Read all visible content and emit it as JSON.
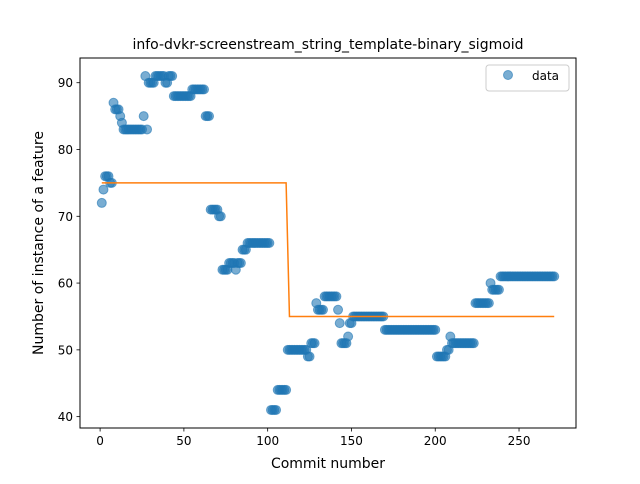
{
  "chart_data": {
    "type": "scatter",
    "title": "info-dvkr-screenstream_string_template-binary_sigmoid",
    "xlabel": "Commit number",
    "ylabel": "Number of instance of a feature",
    "xlim": [
      -12,
      284
    ],
    "ylim": [
      38.3,
      93.7
    ],
    "xticks": [
      0,
      50,
      100,
      150,
      200,
      250
    ],
    "yticks": [
      40,
      50,
      60,
      70,
      80,
      90
    ],
    "grid": false,
    "legend": {
      "placement": "top-right",
      "entries": [
        "data"
      ]
    },
    "colors": {
      "points": "#1f77b4",
      "fit": "#ff7f0e"
    },
    "series": [
      {
        "name": "data",
        "kind": "scatter",
        "points": [
          [
            1,
            72
          ],
          [
            2,
            74
          ],
          [
            3,
            76
          ],
          [
            4,
            76
          ],
          [
            5,
            76
          ],
          [
            6,
            75
          ],
          [
            7,
            75
          ],
          [
            8,
            87
          ],
          [
            9,
            86
          ],
          [
            10,
            86
          ],
          [
            11,
            86
          ],
          [
            12,
            85
          ],
          [
            13,
            84
          ],
          [
            14,
            83
          ],
          [
            15,
            83
          ],
          [
            16,
            83
          ],
          [
            17,
            83
          ],
          [
            18,
            83
          ],
          [
            19,
            83
          ],
          [
            20,
            83
          ],
          [
            21,
            83
          ],
          [
            22,
            83
          ],
          [
            23,
            83
          ],
          [
            24,
            83
          ],
          [
            25,
            83
          ],
          [
            26,
            85
          ],
          [
            27,
            91
          ],
          [
            28,
            83
          ],
          [
            29,
            90
          ],
          [
            30,
            90
          ],
          [
            31,
            90
          ],
          [
            32,
            90
          ],
          [
            33,
            91
          ],
          [
            34,
            91
          ],
          [
            35,
            91
          ],
          [
            36,
            91
          ],
          [
            37,
            91
          ],
          [
            38,
            91
          ],
          [
            39,
            90
          ],
          [
            40,
            90
          ],
          [
            41,
            91
          ],
          [
            42,
            91
          ],
          [
            43,
            91
          ],
          [
            44,
            88
          ],
          [
            45,
            88
          ],
          [
            46,
            88
          ],
          [
            47,
            88
          ],
          [
            48,
            88
          ],
          [
            49,
            88
          ],
          [
            50,
            88
          ],
          [
            51,
            88
          ],
          [
            52,
            88
          ],
          [
            53,
            88
          ],
          [
            54,
            88
          ],
          [
            55,
            89
          ],
          [
            56,
            89
          ],
          [
            57,
            89
          ],
          [
            58,
            89
          ],
          [
            59,
            89
          ],
          [
            60,
            89
          ],
          [
            61,
            89
          ],
          [
            62,
            89
          ],
          [
            63,
            85
          ],
          [
            64,
            85
          ],
          [
            65,
            85
          ],
          [
            66,
            71
          ],
          [
            67,
            71
          ],
          [
            68,
            71
          ],
          [
            69,
            71
          ],
          [
            70,
            71
          ],
          [
            71,
            70
          ],
          [
            72,
            70
          ],
          [
            73,
            62
          ],
          [
            74,
            62
          ],
          [
            75,
            62
          ],
          [
            76,
            62
          ],
          [
            77,
            63
          ],
          [
            78,
            63
          ],
          [
            79,
            63
          ],
          [
            80,
            63
          ],
          [
            81,
            62
          ],
          [
            82,
            63
          ],
          [
            83,
            63
          ],
          [
            84,
            63
          ],
          [
            85,
            65
          ],
          [
            86,
            65
          ],
          [
            87,
            65
          ],
          [
            88,
            66
          ],
          [
            89,
            66
          ],
          [
            90,
            66
          ],
          [
            91,
            66
          ],
          [
            92,
            66
          ],
          [
            93,
            66
          ],
          [
            94,
            66
          ],
          [
            95,
            66
          ],
          [
            96,
            66
          ],
          [
            97,
            66
          ],
          [
            98,
            66
          ],
          [
            99,
            66
          ],
          [
            100,
            66
          ],
          [
            101,
            66
          ],
          [
            102,
            41
          ],
          [
            103,
            41
          ],
          [
            104,
            41
          ],
          [
            105,
            41
          ],
          [
            106,
            44
          ],
          [
            107,
            44
          ],
          [
            108,
            44
          ],
          [
            109,
            44
          ],
          [
            110,
            44
          ],
          [
            111,
            44
          ],
          [
            112,
            50
          ],
          [
            113,
            50
          ],
          [
            114,
            50
          ],
          [
            115,
            50
          ],
          [
            116,
            50
          ],
          [
            117,
            50
          ],
          [
            118,
            50
          ],
          [
            119,
            50
          ],
          [
            120,
            50
          ],
          [
            121,
            50
          ],
          [
            122,
            50
          ],
          [
            123,
            50
          ],
          [
            124,
            49
          ],
          [
            125,
            49
          ],
          [
            126,
            51
          ],
          [
            127,
            51
          ],
          [
            128,
            51
          ],
          [
            129,
            57
          ],
          [
            130,
            56
          ],
          [
            131,
            56
          ],
          [
            132,
            56
          ],
          [
            133,
            56
          ],
          [
            134,
            58
          ],
          [
            135,
            58
          ],
          [
            136,
            58
          ],
          [
            137,
            58
          ],
          [
            138,
            58
          ],
          [
            139,
            58
          ],
          [
            140,
            58
          ],
          [
            141,
            58
          ],
          [
            142,
            56
          ],
          [
            143,
            54
          ],
          [
            144,
            51
          ],
          [
            145,
            51
          ],
          [
            146,
            51
          ],
          [
            147,
            51
          ],
          [
            148,
            52
          ],
          [
            149,
            54
          ],
          [
            150,
            54
          ],
          [
            151,
            55
          ],
          [
            152,
            55
          ],
          [
            153,
            55
          ],
          [
            154,
            55
          ],
          [
            155,
            55
          ],
          [
            156,
            55
          ],
          [
            157,
            55
          ],
          [
            158,
            55
          ],
          [
            159,
            55
          ],
          [
            160,
            55
          ],
          [
            161,
            55
          ],
          [
            162,
            55
          ],
          [
            163,
            55
          ],
          [
            164,
            55
          ],
          [
            165,
            55
          ],
          [
            166,
            55
          ],
          [
            167,
            55
          ],
          [
            168,
            55
          ],
          [
            169,
            55
          ],
          [
            170,
            53
          ],
          [
            171,
            53
          ],
          [
            172,
            53
          ],
          [
            173,
            53
          ],
          [
            174,
            53
          ],
          [
            175,
            53
          ],
          [
            176,
            53
          ],
          [
            177,
            53
          ],
          [
            178,
            53
          ],
          [
            179,
            53
          ],
          [
            180,
            53
          ],
          [
            181,
            53
          ],
          [
            182,
            53
          ],
          [
            183,
            53
          ],
          [
            184,
            53
          ],
          [
            185,
            53
          ],
          [
            186,
            53
          ],
          [
            187,
            53
          ],
          [
            188,
            53
          ],
          [
            189,
            53
          ],
          [
            190,
            53
          ],
          [
            191,
            53
          ],
          [
            192,
            53
          ],
          [
            193,
            53
          ],
          [
            194,
            53
          ],
          [
            195,
            53
          ],
          [
            196,
            53
          ],
          [
            197,
            53
          ],
          [
            198,
            53
          ],
          [
            199,
            53
          ],
          [
            200,
            53
          ],
          [
            201,
            49
          ],
          [
            202,
            49
          ],
          [
            203,
            49
          ],
          [
            204,
            49
          ],
          [
            205,
            49
          ],
          [
            206,
            49
          ],
          [
            207,
            50
          ],
          [
            208,
            50
          ],
          [
            209,
            52
          ],
          [
            210,
            51
          ],
          [
            211,
            51
          ],
          [
            212,
            51
          ],
          [
            213,
            51
          ],
          [
            214,
            51
          ],
          [
            215,
            51
          ],
          [
            216,
            51
          ],
          [
            217,
            51
          ],
          [
            218,
            51
          ],
          [
            219,
            51
          ],
          [
            220,
            51
          ],
          [
            221,
            51
          ],
          [
            222,
            51
          ],
          [
            223,
            51
          ],
          [
            224,
            57
          ],
          [
            225,
            57
          ],
          [
            226,
            57
          ],
          [
            227,
            57
          ],
          [
            228,
            57
          ],
          [
            229,
            57
          ],
          [
            230,
            57
          ],
          [
            231,
            57
          ],
          [
            232,
            57
          ],
          [
            233,
            60
          ],
          [
            234,
            59
          ],
          [
            235,
            59
          ],
          [
            236,
            59
          ],
          [
            237,
            59
          ],
          [
            238,
            59
          ],
          [
            239,
            61
          ],
          [
            240,
            61
          ],
          [
            241,
            61
          ],
          [
            242,
            61
          ],
          [
            243,
            61
          ],
          [
            244,
            61
          ],
          [
            245,
            61
          ],
          [
            246,
            61
          ],
          [
            247,
            61
          ],
          [
            248,
            61
          ],
          [
            249,
            61
          ],
          [
            250,
            61
          ],
          [
            251,
            61
          ],
          [
            252,
            61
          ],
          [
            253,
            61
          ],
          [
            254,
            61
          ],
          [
            255,
            61
          ],
          [
            256,
            61
          ],
          [
            257,
            61
          ],
          [
            258,
            61
          ],
          [
            259,
            61
          ],
          [
            260,
            61
          ],
          [
            261,
            61
          ],
          [
            262,
            61
          ],
          [
            263,
            61
          ],
          [
            264,
            61
          ],
          [
            265,
            61
          ],
          [
            266,
            61
          ],
          [
            267,
            61
          ],
          [
            268,
            61
          ],
          [
            269,
            61
          ],
          [
            270,
            61
          ],
          [
            271,
            61
          ]
        ]
      },
      {
        "kind": "line",
        "points": [
          [
            1,
            75
          ],
          [
            111,
            75
          ],
          [
            113,
            55
          ],
          [
            271,
            55
          ]
        ]
      }
    ]
  }
}
